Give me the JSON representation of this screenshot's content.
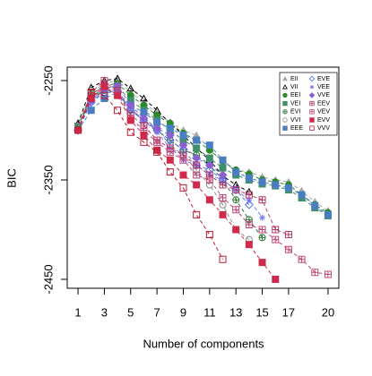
{
  "chart_data": {
    "type": "line",
    "x_label": "Number of components",
    "y_label": "BIC",
    "x": [
      1,
      2,
      3,
      4,
      5,
      6,
      7,
      8,
      9,
      10,
      11,
      12,
      13,
      14,
      15,
      16,
      17,
      18,
      19,
      20
    ],
    "xlim": [
      0.18,
      20.82
    ],
    "ylim": [
      -2459,
      -2236.5
    ],
    "xticks": [
      1,
      3,
      5,
      7,
      9,
      11,
      13,
      15,
      17,
      20
    ],
    "yticks": [
      -2450,
      -2350,
      -2250
    ],
    "legend": "top-right",
    "series": [
      {
        "name": "EII",
        "color": "#a8a8a8",
        "marker": "triangle",
        "values": [
          -2295,
          -2262,
          -2253,
          -2250,
          -2262,
          -2272,
          -2283,
          -2292,
          -2300,
          -2305,
          -2318,
          -2333,
          -2340,
          -2342,
          -2347,
          -2350,
          -2352,
          -2361,
          -2372,
          -2381
        ]
      },
      {
        "name": "VII",
        "color": "#000000",
        "marker": "triangle-open",
        "values": [
          -2293,
          -2257,
          -2250,
          -2248,
          -2258,
          -2268,
          -2280,
          -2293,
          -2305,
          -2318,
          -2330,
          -2346,
          -2355,
          -2362,
          null,
          null,
          null,
          null,
          null,
          null
        ]
      },
      {
        "name": "EEI",
        "color": "#2a8a2a",
        "marker": "circle",
        "values": [
          -2296,
          -2264,
          -2255,
          -2253,
          -2265,
          -2275,
          -2285,
          -2293,
          -2303,
          -2310,
          -2320,
          -2331,
          -2340,
          -2344,
          -2350,
          -2352,
          -2355,
          -2365,
          -2375,
          -2383
        ]
      },
      {
        "name": "VEI",
        "color": "#3f8f6a",
        "marker": "square",
        "values": [
          -2296,
          -2266,
          -2258,
          -2256,
          -2270,
          -2280,
          -2290,
          -2300,
          -2310,
          -2318,
          -2328,
          -2338,
          -2345,
          -2350,
          -2354,
          -2356,
          -2360,
          -2368,
          -2378,
          -2386
        ]
      },
      {
        "name": "EVI",
        "color": "#2f7a3a",
        "marker": "circle-plus",
        "values": [
          -2296,
          -2270,
          -2260,
          -2262,
          -2280,
          -2290,
          -2300,
          -2310,
          -2320,
          -2325,
          -2335,
          -2350,
          -2370,
          -2390,
          -2408,
          null,
          null,
          null,
          null,
          null
        ]
      },
      {
        "name": "VVI",
        "color": "#8a8a8a",
        "marker": "circle-open",
        "values": [
          -2296,
          -2270,
          -2258,
          -2262,
          -2278,
          -2290,
          -2298,
          -2315,
          -2325,
          -2340,
          -2355,
          -2375,
          -2400,
          -2410,
          null,
          null,
          null,
          null,
          null,
          null
        ]
      },
      {
        "name": "EEE",
        "color": "#4a7ec2",
        "marker": "square",
        "values": [
          -2300,
          -2280,
          -2268,
          -2262,
          -2275,
          -2282,
          -2292,
          -2298,
          -2305,
          -2310,
          -2315,
          -2330,
          -2342,
          -2348,
          -2352,
          -2355,
          -2358,
          -2365,
          -2376,
          -2385
        ]
      },
      {
        "name": "EVE",
        "color": "#4f6ff0",
        "marker": "diamond-open",
        "values": [
          -2300,
          -2272,
          -2262,
          -2262,
          -2280,
          -2290,
          -2300,
          -2310,
          -2320,
          -2335,
          -2340,
          -2350,
          -2360,
          -2375,
          null,
          null,
          null,
          null,
          null,
          null
        ]
      },
      {
        "name": "VEE",
        "color": "#7a7af0",
        "marker": "asterisk",
        "values": [
          -2300,
          -2272,
          -2260,
          -2260,
          -2278,
          -2290,
          -2302,
          -2318,
          -2330,
          -2335,
          -2345,
          -2350,
          -2360,
          -2370,
          -2388,
          null,
          null,
          null,
          null,
          null
        ]
      },
      {
        "name": "VVE",
        "color": "#8a5fd0",
        "marker": "diamond",
        "values": [
          -2300,
          -2270,
          -2258,
          -2255,
          -2275,
          -2288,
          -2298,
          -2305,
          -2315,
          -2328,
          -2335,
          -2345,
          null,
          null,
          null,
          null,
          null,
          null,
          null,
          null
        ]
      },
      {
        "name": "EEV",
        "color": "#b03a6a",
        "marker": "square-plus",
        "values": [
          -2300,
          -2265,
          -2255,
          -2260,
          -2285,
          -2295,
          -2310,
          -2318,
          -2325,
          -2335,
          -2345,
          -2355,
          -2360,
          -2365,
          -2370,
          -2400,
          -2405,
          null,
          null,
          null
        ]
      },
      {
        "name": "VEV",
        "color": "#c04a7a",
        "marker": "square-plus",
        "values": [
          -2300,
          -2262,
          -2250,
          -2262,
          -2288,
          -2300,
          -2312,
          -2322,
          -2330,
          -2345,
          -2350,
          -2368,
          -2380,
          -2395,
          -2400,
          -2410,
          -2420,
          -2430,
          -2443,
          -2445
        ]
      },
      {
        "name": "EVV",
        "color": "#d02a4a",
        "marker": "square",
        "values": [
          -2300,
          -2268,
          -2256,
          -2265,
          -2290,
          -2305,
          -2320,
          -2330,
          -2345,
          -2355,
          -2370,
          -2385,
          -2400,
          -2415,
          -2433,
          -2450,
          null,
          null,
          null,
          null
        ]
      },
      {
        "name": "VVV",
        "color": "#c01830",
        "marker": "square-open",
        "values": [
          -2300,
          -2262,
          -2265,
          -2280,
          -2302,
          -2312,
          -2322,
          -2342,
          -2358,
          -2385,
          -2405,
          -2430,
          null,
          null,
          null,
          null,
          null,
          null,
          null,
          null
        ]
      }
    ]
  }
}
